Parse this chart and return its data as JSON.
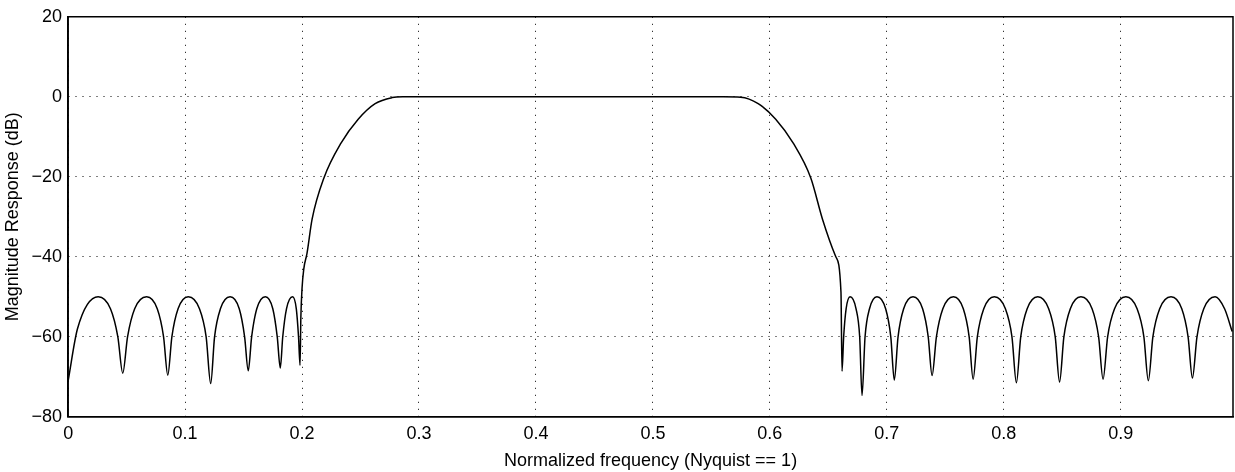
{
  "chart_data": {
    "type": "line",
    "xlabel": "Normalized frequency (Nyquist == 1)",
    "ylabel": "Magnitude Response (dB)",
    "xlim": [
      0,
      0.996
    ],
    "ylim": [
      -80,
      20
    ],
    "xticks": [
      0,
      0.1,
      0.2,
      0.3,
      0.4,
      0.5,
      0.6,
      0.7,
      0.8,
      0.9
    ],
    "yticks": [
      -80,
      -60,
      -40,
      -20,
      0,
      20
    ],
    "grid": true,
    "line_style": "solid",
    "marker": "none",
    "series": [
      {
        "color": "#000000",
        "x": [
          0,
          0.008,
          0.0257,
          0.0362,
          0.0425,
          0.0467,
          0.0508,
          0.0569,
          0.0671,
          0.0762,
          0.0816,
          0.0852,
          0.0887,
          0.094,
          0.1027,
          0.1123,
          0.118,
          0.1219,
          0.1252,
          0.1302,
          0.1385,
          0.1463,
          0.1509,
          0.154,
          0.1569,
          0.1613,
          0.1686,
          0.175,
          0.1788,
          0.1814,
          0.1835,
          0.1867,
          0.1919,
          0.1951,
          0.197,
          0.1983,
          0.199,
          0.2,
          0.2015,
          0.2042,
          0.2086,
          0.2187,
          0.2333,
          0.248,
          0.2625,
          0.277,
          0.286,
          0.35,
          0.42,
          0.5,
          0.56,
          0.575,
          0.59,
          0.605,
          0.62,
          0.635,
          0.645,
          0.6564,
          0.6608,
          0.6617,
          0.6631,
          0.6652,
          0.6686,
          0.6737,
          0.6768,
          0.6788,
          0.6814,
          0.6852,
          0.6916,
          0.699,
          0.7034,
          0.7064,
          0.7096,
          0.7144,
          0.7224,
          0.7306,
          0.7354,
          0.7387,
          0.7424,
          0.7479,
          0.757,
          0.7654,
          0.7704,
          0.7738,
          0.7774,
          0.7829,
          0.7919,
          0.8014,
          0.807,
          0.8108,
          0.8145,
          0.82,
          0.8291,
          0.8384,
          0.844,
          0.8477,
          0.8514,
          0.8569,
          0.866,
          0.8755,
          0.8811,
          0.8849,
          0.8888,
          0.8947,
          0.9044,
          0.914,
          0.9198,
          0.9236,
          0.9275,
          0.9333,
          0.943,
          0.9522,
          0.9576,
          0.9613,
          0.9652,
          0.971,
          0.9807,
          0.9888,
          0.9953
        ],
        "values": [
          -71,
          -58,
          -50,
          -53,
          -60,
          -69.1,
          -60,
          -53,
          -50,
          -53,
          -60,
          -69.6,
          -60,
          -53,
          -50,
          -53,
          -60,
          -71.7,
          -60,
          -53,
          -50,
          -53,
          -60,
          -68.5,
          -60,
          -53,
          -50,
          -53,
          -60,
          -67.8,
          -60,
          -53,
          -50,
          -53,
          -60,
          -67.1,
          -55,
          -47.9,
          -43,
          -39.2,
          -30.6,
          -20.3,
          -11.6,
          -5.6,
          -1.7,
          -0.2,
          0,
          0,
          0,
          0,
          0,
          -0.1,
          -1.7,
          -5.6,
          -11.6,
          -20.3,
          -30.6,
          -40,
          -48.8,
          -68.6,
          -60,
          -53,
          -50,
          -53,
          -60,
          -74.7,
          -60,
          -53,
          -50,
          -53,
          -60,
          -70.8,
          -60,
          -53,
          -50,
          -53,
          -60,
          -69.7,
          -60,
          -53,
          -50,
          -53,
          -60,
          -70.6,
          -60,
          -53,
          -50,
          -53,
          -60,
          -71.5,
          -60,
          -53,
          -50,
          -53,
          -60,
          -71.3,
          -60,
          -53,
          -50,
          -53,
          -60,
          -70.6,
          -60,
          -53,
          -50,
          -53,
          -60,
          -71,
          -60,
          -53,
          -50,
          -53,
          -60,
          -70.3,
          -60,
          -53,
          -50,
          -53,
          -58.7
        ]
      }
    ]
  }
}
